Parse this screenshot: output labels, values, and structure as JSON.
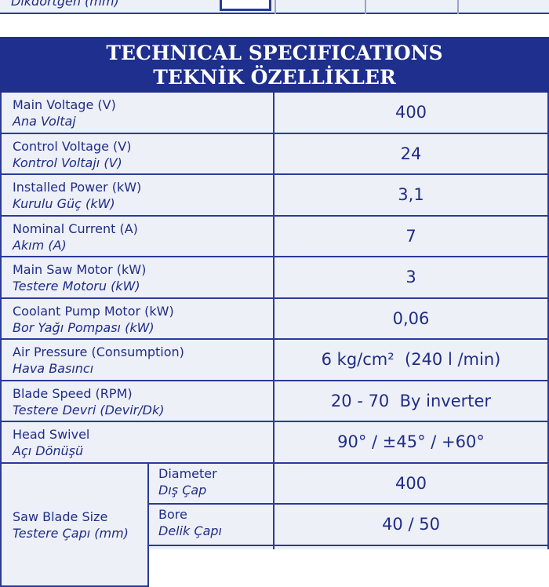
{
  "top": {
    "label": "Dikdörtgen (mm)"
  },
  "header": {
    "title": "TECHNICAL SPECIFICATIONS",
    "subtitle": "TEKNİK ÖZELLİKLER"
  },
  "table": {
    "rows": [
      {
        "label_en": "Main Voltage (V)",
        "label_tr": "Ana Voltaj",
        "value": "400"
      },
      {
        "label_en": "Control Voltage (V)",
        "label_tr": "Kontrol Voltajı (V)",
        "value": "24"
      },
      {
        "label_en": "Installed Power (kW)",
        "label_tr": "Kurulu Güç (kW)",
        "value": "3,1"
      },
      {
        "label_en": "Nominal Current (A)",
        "label_tr": "Akım (A)",
        "value": "7"
      },
      {
        "label_en": "Main Saw Motor (kW)",
        "label_tr": "Testere Motoru (kW)",
        "value": "3"
      },
      {
        "label_en": "Coolant Pump Motor (kW)",
        "label_tr": "Bor Yağı Pompası (kW)",
        "value": "0,06"
      },
      {
        "label_en": "Air Pressure (Consumption)",
        "label_tr": "Hava Basıncı",
        "value": "6 kg/cm²  (240 l /min)"
      },
      {
        "label_en": "Blade Speed (RPM)",
        "label_tr": "Testere Devri (Devir/Dk)",
        "value": "20 - 70  By inverter"
      },
      {
        "label_en": "Head Swivel",
        "label_tr": "Açı Dönüşü",
        "value": "90° / ±45° / +60°"
      }
    ],
    "blade": {
      "label_en": "Saw Blade Size",
      "label_tr": "Testere Çapı (mm)",
      "rows": [
        {
          "label_en": "Diameter",
          "label_tr": "Dış Çap",
          "value": "400"
        },
        {
          "label_en": "Bore",
          "label_tr": "Delik Çapı",
          "value": "40 / 50"
        }
      ]
    }
  }
}
